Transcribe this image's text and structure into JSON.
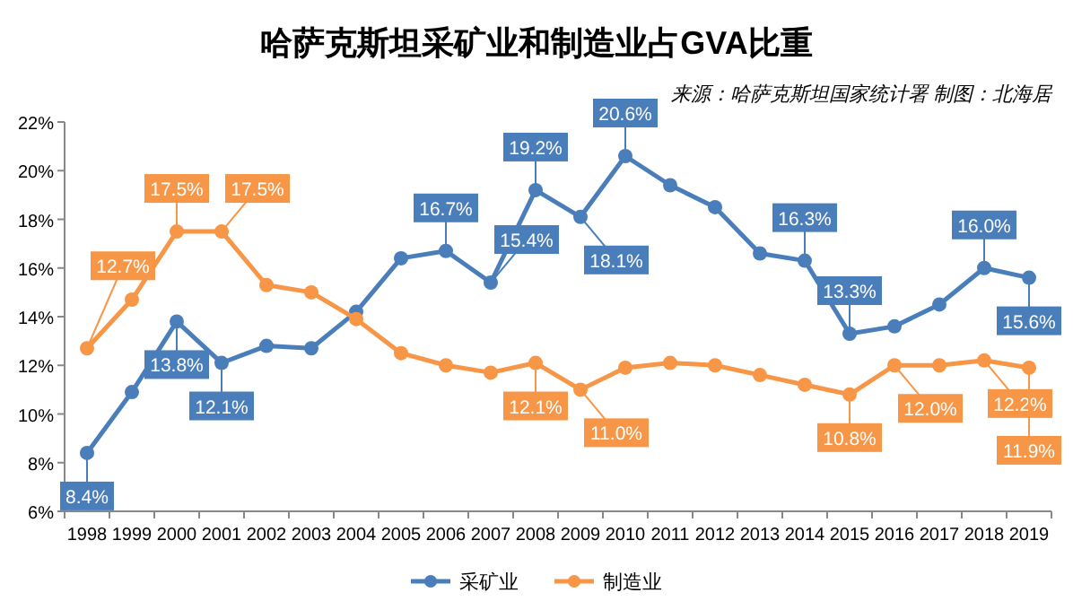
{
  "chart_data": {
    "type": "line",
    "title": "哈萨克斯坦采矿业和制造业占GVA比重",
    "annotations": [
      "来源：哈萨克斯坦国家统计署  制图：北海居"
    ],
    "categories": [
      "1998",
      "1999",
      "2000",
      "2001",
      "2002",
      "2003",
      "2004",
      "2005",
      "2006",
      "2007",
      "2008",
      "2009",
      "2010",
      "2011",
      "2012",
      "2013",
      "2014",
      "2015",
      "2016",
      "2017",
      "2018",
      "2019"
    ],
    "ylim": [
      6,
      22
    ],
    "yticks": [
      {
        "value": 6,
        "label": "6%"
      },
      {
        "value": 8,
        "label": "8%"
      },
      {
        "value": 10,
        "label": "10%"
      },
      {
        "value": 12,
        "label": "12%"
      },
      {
        "value": 14,
        "label": "14%"
      },
      {
        "value": 16,
        "label": "16%"
      },
      {
        "value": 18,
        "label": "18%"
      },
      {
        "value": 20,
        "label": "20%"
      },
      {
        "value": 22,
        "label": "22%"
      }
    ],
    "grid": false,
    "legend": "bottom",
    "marker": "circle",
    "line_style": "solid",
    "series": [
      {
        "name": "采矿业",
        "color": "#4a7ebb",
        "values": [
          8.4,
          10.9,
          13.8,
          12.1,
          12.8,
          12.7,
          14.2,
          16.4,
          16.7,
          15.4,
          19.2,
          18.1,
          20.6,
          19.4,
          18.5,
          16.6,
          16.3,
          13.3,
          13.6,
          14.5,
          16.0,
          15.6
        ],
        "value_labels": [
          "8.4%",
          null,
          "13.8%",
          "12.1%",
          null,
          null,
          null,
          null,
          "16.7%",
          "15.4%",
          "19.2%",
          "18.1%",
          "20.6%",
          null,
          null,
          null,
          "16.3%",
          "13.3%",
          null,
          null,
          "16.0%",
          "15.6%"
        ]
      },
      {
        "name": "制造业",
        "color": "#f79646",
        "values": [
          12.7,
          14.7,
          17.5,
          17.5,
          15.3,
          15.0,
          13.9,
          12.5,
          12.0,
          11.7,
          12.1,
          11.0,
          11.9,
          12.1,
          12.0,
          11.6,
          11.2,
          10.8,
          12.0,
          12.0,
          12.2,
          11.9
        ],
        "value_labels": [
          "12.7%",
          null,
          "17.5%",
          "17.5%",
          null,
          null,
          null,
          null,
          null,
          null,
          "12.1%",
          "11.0%",
          null,
          null,
          null,
          null,
          null,
          "10.8%",
          "12.0%",
          null,
          "12.2%",
          "11.9%"
        ]
      }
    ]
  }
}
